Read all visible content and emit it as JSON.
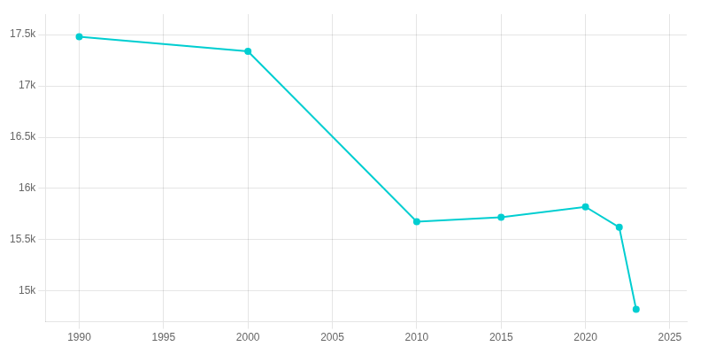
{
  "chart_data": {
    "type": "line",
    "x": [
      1990,
      2000,
      2010,
      2015,
      2020,
      2022,
      2023
    ],
    "values": [
      17479,
      17338,
      15676,
      15720,
      15821,
      15622,
      14822
    ],
    "color": "#00CED1",
    "marker": "circle",
    "xlim": [
      1988,
      2026
    ],
    "xticks": [
      1990,
      1995,
      2000,
      2005,
      2010,
      2015,
      2020,
      2025
    ],
    "ylim": [
      14700,
      17700
    ],
    "yticks": [
      {
        "value": 15000,
        "label": "15k"
      },
      {
        "value": 15500,
        "label": "15.5k"
      },
      {
        "value": 16000,
        "label": "16k"
      },
      {
        "value": 16500,
        "label": "16.5k"
      },
      {
        "value": 17000,
        "label": "17k"
      },
      {
        "value": 17500,
        "label": "17.5k"
      }
    ],
    "grid": true
  }
}
